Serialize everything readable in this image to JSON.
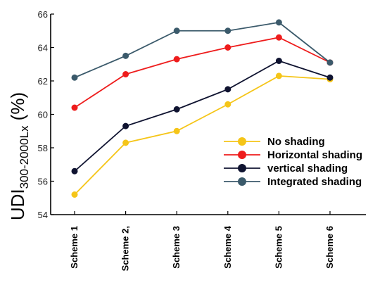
{
  "chart_data": {
    "type": "line",
    "categories": [
      "Scheme 1",
      "Scheme 2",
      "Scheme 3",
      "Scheme 4",
      "Scheme 5",
      "Scheme 6"
    ],
    "category_labels": [
      "Scheme 1",
      "Scheme 2,",
      "Scheme 3",
      "Scheme 4",
      "Scheme 5",
      "Scheme 6"
    ],
    "ylabel_main": "UDI",
    "ylabel_sub": "300-2000Lx",
    "ylabel_unit": " (%)",
    "ylim": [
      54,
      66
    ],
    "yticks": [
      54,
      56,
      58,
      60,
      62,
      64,
      66
    ],
    "grid": false,
    "legend_position": "center-right",
    "series": [
      {
        "name": "No shading",
        "color": "#f5c518",
        "values": [
          55.2,
          58.3,
          59.0,
          60.6,
          62.3,
          62.1
        ]
      },
      {
        "name": "Horizontal shading",
        "color": "#ee1c1c",
        "values": [
          60.4,
          62.4,
          63.3,
          64.0,
          64.6,
          63.1
        ]
      },
      {
        "name": "vertical shading",
        "color": "#0f1330",
        "values": [
          56.6,
          59.3,
          60.3,
          61.5,
          63.2,
          62.2
        ]
      },
      {
        "name": "Integrated shading",
        "color": "#3b5a6b",
        "values": [
          62.2,
          63.5,
          65.0,
          65.0,
          65.5,
          63.1
        ]
      }
    ]
  }
}
